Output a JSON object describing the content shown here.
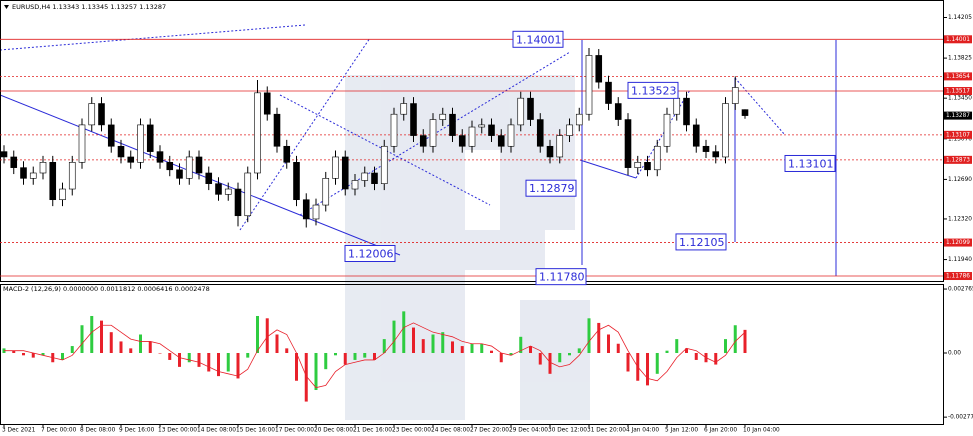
{
  "chart_data": [
    {
      "type": "candlestick",
      "title": "EURUSD,H4  1.13343 1.13345 1.13257 1.13287",
      "categories": [
        "3 Dec 2021",
        null,
        null,
        null,
        "7 Dec 00:00",
        null,
        null,
        null,
        "8 Dec 08:00",
        null,
        null,
        null,
        "9 Dec 16:00",
        null,
        null,
        null,
        "13 Dec 00:00",
        null,
        null,
        null,
        "14 Dec 08:00",
        null,
        null,
        null,
        "15 Dec 16:00",
        null,
        null,
        null,
        "17 Dec 00:00",
        null,
        null,
        null,
        "20 Dec 08:00",
        null,
        null,
        null,
        "21 Dec 16:00",
        null,
        null,
        null,
        "23 Dec 00:00",
        null,
        null,
        null,
        "24 Dec 08:00",
        null,
        null,
        null,
        "27 Dec 20:00",
        null,
        null,
        null,
        "29 Dec 04:00",
        null,
        null,
        null,
        "30 Dec 12:00",
        null,
        null,
        null,
        "31 Dec 20:00",
        null,
        null,
        null,
        "4 Jan 04:00",
        null,
        null,
        null,
        "5 Jan 12:00",
        null,
        null,
        null,
        "6 Jan 20:00",
        null,
        null,
        null,
        "10 Jan 04:00"
      ],
      "open": [
        1.1295,
        1.129,
        1.128,
        1.127,
        1.1275,
        1.1285,
        1.125,
        1.126,
        1.1285,
        1.132,
        1.134,
        1.132,
        1.13,
        1.129,
        1.1285,
        1.132,
        1.1295,
        1.1285,
        1.1278,
        1.127,
        1.129,
        1.1275,
        1.1265,
        1.1255,
        1.126,
        1.1235,
        1.1275,
        1.135,
        1.133,
        1.13,
        1.1285,
        1.125,
        1.1232,
        1.1245,
        1.127,
        1.129,
        1.126,
        1.1268,
        1.1275,
        1.1265,
        1.13,
        1.133,
        1.134,
        1.131,
        1.13,
        1.1325,
        1.133,
        1.131,
        1.13,
        1.1318,
        1.132,
        1.131,
        1.13,
        1.132,
        1.1345,
        1.1325,
        1.13,
        1.129,
        1.131,
        1.132,
        1.133,
        1.1385,
        1.136,
        1.134,
        1.1325,
        1.128,
        1.1285,
        1.1278,
        1.13,
        1.133,
        1.1345,
        1.132,
        1.13,
        1.1295,
        1.129,
        1.134,
        1.13343
      ],
      "high": [
        1.1301,
        1.1296,
        1.1286,
        1.1281,
        1.1291,
        1.1291,
        1.1266,
        1.1291,
        1.1326,
        1.1346,
        1.1346,
        1.1326,
        1.1306,
        1.1296,
        1.1326,
        1.1326,
        1.1301,
        1.1291,
        1.1284,
        1.1296,
        1.1296,
        1.1281,
        1.1271,
        1.1266,
        1.1266,
        1.1281,
        1.1362,
        1.1356,
        1.1336,
        1.1306,
        1.1291,
        1.1256,
        1.1251,
        1.1276,
        1.1296,
        1.1296,
        1.1274,
        1.1281,
        1.1281,
        1.1306,
        1.1336,
        1.1346,
        1.1346,
        1.1316,
        1.1331,
        1.1336,
        1.1336,
        1.1316,
        1.1324,
        1.1326,
        1.1326,
        1.1316,
        1.1326,
        1.1351,
        1.1351,
        1.1331,
        1.1306,
        1.1316,
        1.1326,
        1.1336,
        1.1392,
        1.1391,
        1.1366,
        1.1346,
        1.1331,
        1.1291,
        1.1291,
        1.1306,
        1.1336,
        1.1351,
        1.1351,
        1.1326,
        1.1306,
        1.1301,
        1.1346,
        1.13654,
        1.13345
      ],
      "low": [
        1.1284,
        1.1274,
        1.1264,
        1.1264,
        1.1269,
        1.1244,
        1.1244,
        1.1254,
        1.1279,
        1.1314,
        1.1314,
        1.1294,
        1.1284,
        1.1279,
        1.1279,
        1.1289,
        1.1279,
        1.1272,
        1.1264,
        1.1264,
        1.1269,
        1.1259,
        1.1249,
        1.1249,
        1.1225,
        1.1229,
        1.1269,
        1.1324,
        1.1294,
        1.1279,
        1.1244,
        1.1224,
        1.1226,
        1.1239,
        1.1264,
        1.1254,
        1.1254,
        1.1262,
        1.1259,
        1.1259,
        1.1294,
        1.1324,
        1.1304,
        1.1294,
        1.1294,
        1.1319,
        1.1304,
        1.1294,
        1.1294,
        1.1312,
        1.1304,
        1.1294,
        1.1294,
        1.1314,
        1.1319,
        1.1294,
        1.1284,
        1.1284,
        1.1304,
        1.1314,
        1.1324,
        1.1354,
        1.1334,
        1.1319,
        1.1273,
        1.1274,
        1.1272,
        1.1272,
        1.1294,
        1.1324,
        1.1314,
        1.1294,
        1.1289,
        1.1284,
        1.1284,
        1.1334,
        1.13257
      ],
      "close": [
        1.129,
        1.128,
        1.127,
        1.1275,
        1.1285,
        1.125,
        1.126,
        1.1285,
        1.132,
        1.134,
        1.132,
        1.13,
        1.129,
        1.1285,
        1.132,
        1.1295,
        1.1285,
        1.1278,
        1.127,
        1.129,
        1.1275,
        1.1265,
        1.1255,
        1.126,
        1.1235,
        1.1275,
        1.135,
        1.133,
        1.13,
        1.1285,
        1.125,
        1.1232,
        1.1245,
        1.127,
        1.129,
        1.126,
        1.1268,
        1.1275,
        1.1265,
        1.13,
        1.133,
        1.134,
        1.131,
        1.13,
        1.1325,
        1.133,
        1.131,
        1.13,
        1.1318,
        1.132,
        1.131,
        1.13,
        1.132,
        1.1345,
        1.1325,
        1.13,
        1.129,
        1.131,
        1.132,
        1.133,
        1.1385,
        1.136,
        1.134,
        1.1325,
        1.128,
        1.1285,
        1.1278,
        1.13,
        1.133,
        1.1345,
        1.132,
        1.13,
        1.1295,
        1.129,
        1.134,
        1.1355,
        1.13287
      ],
      "ylim": [
        1.1173,
        1.1435
      ],
      "yticks": [
        1.14205,
        1.13825,
        {
          "value": 1.1345,
          "label": "1.13450"
        },
        {
          "value": 1.1307,
          "label": "1.13070"
        },
        {
          "value": 1.1269,
          "label": "1.12690"
        },
        {
          "value": 1.1232,
          "label": "1.12320"
        },
        {
          "value": 1.1194,
          "label": "1.11940"
        }
      ],
      "levels": [
        {
          "value": 1.14001,
          "style": "solid"
        },
        {
          "value": 1.13654,
          "style": "dotted"
        },
        {
          "value": 1.13517,
          "style": "solid"
        },
        {
          "value": 1.13107,
          "style": "dotted"
        },
        {
          "value": 1.12873,
          "style": "dotted"
        },
        {
          "value": 1.12099,
          "style": "dotted"
        },
        {
          "value": 1.11786,
          "style": "solid"
        }
      ],
      "current_price": 1.13287,
      "annotations": [
        1.14001,
        1.13523,
        1.13101,
        1.12879,
        1.12006,
        1.12105,
        {
          "value": 1.1178,
          "label": "1.11780"
        }
      ],
      "up_color": "#ffffff",
      "down_color": "#000000",
      "level_color": "#e02020",
      "annotation_color": "#2b2bd8"
    },
    {
      "type": "macd",
      "title": "MACD-2 (12,26,9) 0.0000000 0.0011812 0.0006416 0.0002478",
      "values": [
        0.0002,
        0.0001,
        -0.0001,
        -0.0002,
        -0.0001,
        -0.0004,
        -0.0003,
        0.0003,
        0.0012,
        0.0016,
        0.0014,
        0.0009,
        0.0005,
        0.0002,
        0.0008,
        0.0005,
        0.0,
        -0.0003,
        -0.0006,
        -0.0004,
        -0.0006,
        -0.0008,
        -0.001,
        -0.0008,
        -0.0011,
        -0.0002,
        0.0016,
        0.0015,
        0.0008,
        0.0002,
        -0.0012,
        -0.0021,
        -0.0016,
        -0.0007,
        -0.0001,
        -0.0005,
        -0.0003,
        -0.0002,
        -0.0003,
        0.0006,
        0.0014,
        0.0018,
        0.0011,
        0.0006,
        0.0008,
        0.0009,
        0.0005,
        0.0003,
        0.0004,
        0.0004,
        0.0001,
        -0.0004,
        -0.0001,
        0.0007,
        0.0003,
        -0.0005,
        -0.0009,
        -0.0004,
        -0.0001,
        0.0002,
        0.0015,
        0.0013,
        0.0008,
        0.0004,
        -0.0008,
        -0.0012,
        -0.0014,
        -0.0009,
        0.0001,
        0.0006,
        0.0002,
        -0.0003,
        -0.0004,
        -0.0005,
        0.0006,
        0.0012,
        0.001
      ],
      "signal": [
        0.0001,
        0.0001,
        0.0001,
        0.0,
        -0.0001,
        -0.0002,
        -0.0003,
        -0.0001,
        0.0004,
        0.0009,
        0.0012,
        0.0012,
        0.0009,
        0.0006,
        0.0005,
        0.0005,
        0.0004,
        0.0001,
        -0.0002,
        -0.0003,
        -0.0004,
        -0.0006,
        -0.0008,
        -0.0009,
        -0.001,
        -0.0007,
        0.0001,
        0.0007,
        0.001,
        0.0008,
        0.0,
        -0.001,
        -0.0015,
        -0.0014,
        -0.0008,
        -0.0005,
        -0.0004,
        -0.0003,
        -0.0003,
        0.0,
        0.0005,
        0.0011,
        0.0013,
        0.0011,
        0.0009,
        0.0008,
        0.0007,
        0.0005,
        0.0004,
        0.0004,
        0.0003,
        0.0,
        -0.0001,
        0.0001,
        0.0003,
        0.0001,
        -0.0004,
        -0.0006,
        -0.0005,
        -0.0001,
        0.0005,
        0.001,
        0.0012,
        0.0009,
        0.0001,
        -0.0006,
        -0.0011,
        -0.0012,
        -0.0008,
        -0.0002,
        0.0002,
        0.0001,
        -0.0002,
        -0.0004,
        -0.0001,
        0.0005,
        0.0009
      ],
      "ylim": [
        -0.00307,
        0.00294
      ],
      "yticks": [
        0.0027655,
        {
          "value": 0,
          "label": "0.00"
        },
        -0.0027736
      ],
      "up_color": "#2ecc40",
      "down_color": "#e8202a",
      "signal_color": "#e8202a"
    }
  ]
}
